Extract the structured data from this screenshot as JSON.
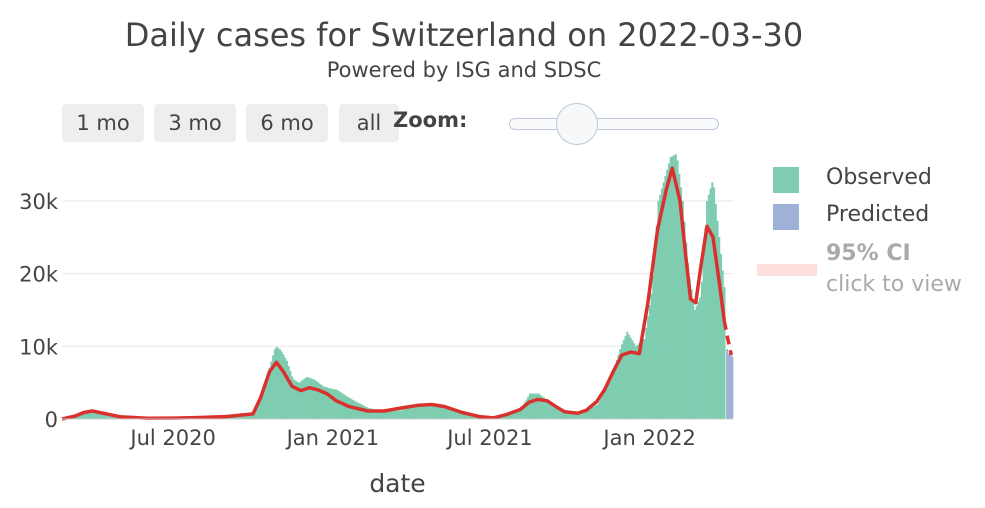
{
  "title": "Daily cases for Switzerland on 2022-03-30",
  "subtitle": "Powered by ISG and SDSC",
  "range_buttons": [
    "1 mo",
    "3 mo",
    "6 mo",
    "all"
  ],
  "zoom_label": "Zoom:",
  "xlabel": "date",
  "colors": {
    "observed": "#7fcdb0",
    "predicted": "#9fb1d6",
    "fit": "#d9322e",
    "ci": "#fde0dd",
    "grid": "#e8e8e8"
  },
  "legend": {
    "observed": "Observed",
    "predicted": "Predicted",
    "ci_title": "95% CI",
    "ci_hint": "click to view"
  },
  "chart_data": {
    "type": "bar",
    "title": "Daily cases for Switzerland on 2022-03-30",
    "xlabel": "date",
    "ylabel": "",
    "ylim": [
      0,
      37000
    ],
    "xlim": [
      "2020-02-24",
      "2022-04-07"
    ],
    "yticks": [
      0,
      10000,
      20000,
      30000
    ],
    "ytick_labels": [
      "0",
      "10k",
      "20k",
      "30k"
    ],
    "xticks": [
      "2020-07-01",
      "2021-01-01",
      "2021-07-01",
      "2022-01-01"
    ],
    "xtick_labels": [
      "Jul 2020",
      "Jan 2021",
      "Jul 2021",
      "Jan 2022"
    ],
    "series": [
      {
        "name": "Observed",
        "kind": "bar",
        "x": [
          "2020-03-01",
          "2020-03-15",
          "2020-03-25",
          "2020-04-05",
          "2020-04-20",
          "2020-05-15",
          "2020-06-15",
          "2020-07-15",
          "2020-08-15",
          "2020-09-15",
          "2020-10-01",
          "2020-10-10",
          "2020-10-20",
          "2020-10-26",
          "2020-11-01",
          "2020-11-08",
          "2020-11-15",
          "2020-11-22",
          "2020-12-01",
          "2020-12-10",
          "2020-12-20",
          "2020-12-28",
          "2021-01-05",
          "2021-01-15",
          "2021-01-25",
          "2021-02-10",
          "2021-03-01",
          "2021-03-20",
          "2021-04-05",
          "2021-04-20",
          "2021-05-05",
          "2021-05-20",
          "2021-06-10",
          "2021-07-01",
          "2021-07-20",
          "2021-08-05",
          "2021-08-15",
          "2021-08-25",
          "2021-09-05",
          "2021-09-15",
          "2021-10-01",
          "2021-10-15",
          "2021-11-01",
          "2021-11-10",
          "2021-11-20",
          "2021-11-28",
          "2021-12-05",
          "2021-12-15",
          "2021-12-25",
          "2022-01-03",
          "2022-01-10",
          "2022-01-17",
          "2022-01-24",
          "2022-01-31",
          "2022-02-07",
          "2022-02-14",
          "2022-02-21",
          "2022-02-28",
          "2022-03-07",
          "2022-03-14",
          "2022-03-21",
          "2022-03-28"
        ],
        "y": [
          200,
          800,
          1100,
          800,
          300,
          100,
          80,
          120,
          250,
          400,
          700,
          3000,
          7500,
          10000,
          9500,
          8000,
          5500,
          5000,
          5800,
          5400,
          4500,
          4200,
          4000,
          3200,
          2500,
          1500,
          1000,
          1200,
          1800,
          2200,
          2000,
          1200,
          500,
          300,
          600,
          1500,
          3500,
          3500,
          2500,
          1500,
          1000,
          900,
          2000,
          4000,
          7000,
          10000,
          12000,
          10000,
          11000,
          18000,
          30000,
          33000,
          36000,
          36500,
          30000,
          20000,
          15000,
          17000,
          30000,
          33000,
          25000,
          17000
        ]
      },
      {
        "name": "Predicted",
        "kind": "bar",
        "x": [
          "2022-03-30",
          "2022-04-01",
          "2022-04-03",
          "2022-04-05"
        ],
        "y": [
          9600,
          9000,
          8800,
          8600
        ]
      },
      {
        "name": "Fit",
        "kind": "line",
        "x": [
          "2020-02-24",
          "2020-03-10",
          "2020-03-20",
          "2020-03-30",
          "2020-04-15",
          "2020-05-01",
          "2020-06-01",
          "2020-07-01",
          "2020-08-01",
          "2020-09-01",
          "2020-10-01",
          "2020-10-10",
          "2020-10-20",
          "2020-10-28",
          "2020-11-05",
          "2020-11-15",
          "2020-11-25",
          "2020-12-05",
          "2020-12-15",
          "2020-12-25",
          "2021-01-05",
          "2021-01-20",
          "2021-02-10",
          "2021-03-01",
          "2021-03-20",
          "2021-04-10",
          "2021-04-25",
          "2021-05-10",
          "2021-05-30",
          "2021-06-20",
          "2021-07-05",
          "2021-07-20",
          "2021-08-05",
          "2021-08-15",
          "2021-08-25",
          "2021-09-05",
          "2021-09-15",
          "2021-09-25",
          "2021-10-10",
          "2021-10-20",
          "2021-11-01",
          "2021-11-10",
          "2021-11-20",
          "2021-11-30",
          "2021-12-10",
          "2021-12-20",
          "2021-12-30",
          "2022-01-10",
          "2022-01-20",
          "2022-01-27",
          "2022-02-05",
          "2022-02-12",
          "2022-02-17",
          "2022-02-23",
          "2022-03-01",
          "2022-03-08",
          "2022-03-15",
          "2022-03-22",
          "2022-03-28"
        ],
        "y": [
          0,
          400,
          900,
          1100,
          700,
          300,
          100,
          120,
          200,
          350,
          700,
          3000,
          6500,
          7800,
          6500,
          4500,
          3900,
          4300,
          4000,
          3500,
          2500,
          1700,
          1100,
          1100,
          1500,
          1900,
          2000,
          1700,
          900,
          300,
          150,
          600,
          1300,
          2300,
          2700,
          2500,
          1700,
          1000,
          800,
          1200,
          2400,
          4000,
          6500,
          8800,
          9200,
          9000,
          16000,
          26000,
          31500,
          34500,
          30000,
          22000,
          16500,
          16000,
          21000,
          26500,
          25000,
          19000,
          13500
        ]
      },
      {
        "name": "Fit (projection)",
        "kind": "line-dashed",
        "x": [
          "2022-03-28",
          "2022-04-01",
          "2022-04-05"
        ],
        "y": [
          13500,
          11000,
          8800
        ]
      }
    ]
  }
}
